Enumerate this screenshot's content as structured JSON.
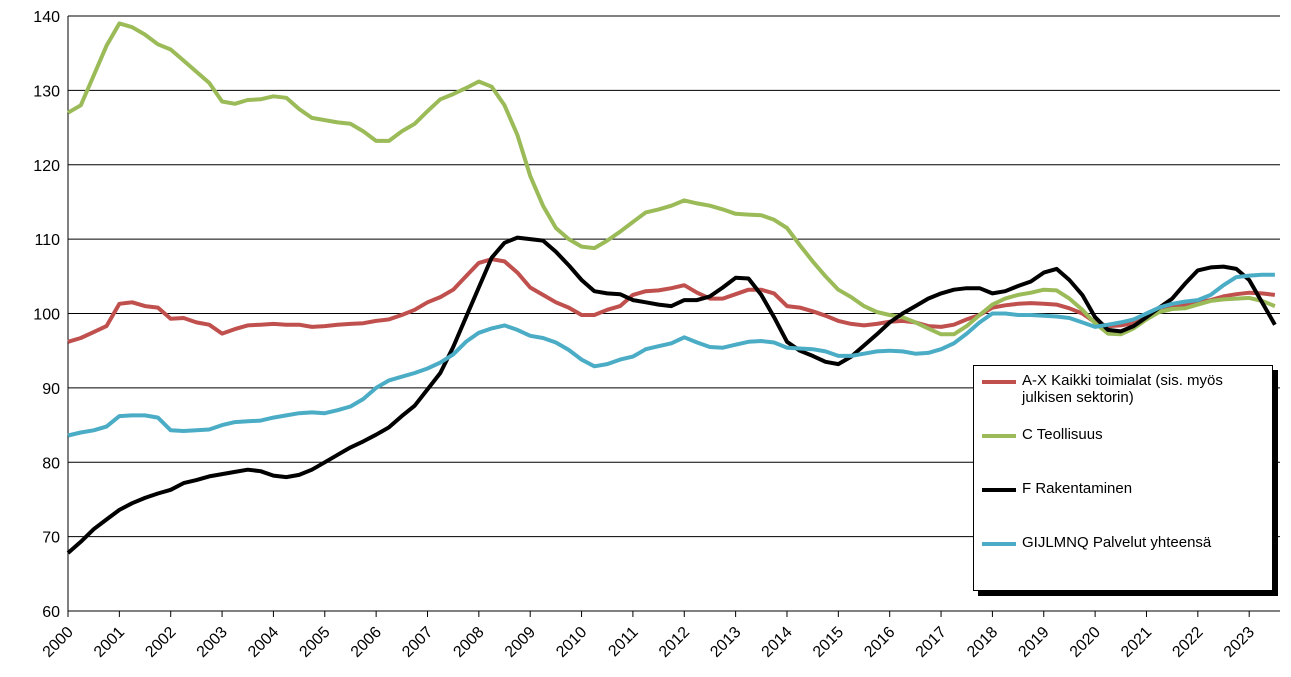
{
  "chart_data": {
    "type": "line",
    "x": [
      2000,
      2000.25,
      2000.5,
      2000.75,
      2001,
      2001.25,
      2001.5,
      2001.75,
      2002,
      2002.25,
      2002.5,
      2002.75,
      2003,
      2003.25,
      2003.5,
      2003.75,
      2004,
      2004.25,
      2004.5,
      2004.75,
      2005,
      2005.25,
      2005.5,
      2005.75,
      2006,
      2006.25,
      2006.5,
      2006.75,
      2007,
      2007.25,
      2007.5,
      2007.75,
      2008,
      2008.25,
      2008.5,
      2008.75,
      2009,
      2009.25,
      2009.5,
      2009.75,
      2010,
      2010.25,
      2010.5,
      2010.75,
      2011,
      2011.25,
      2011.5,
      2011.75,
      2012,
      2012.25,
      2012.5,
      2012.75,
      2013,
      2013.25,
      2013.5,
      2013.75,
      2014,
      2014.25,
      2014.5,
      2014.75,
      2015,
      2015.25,
      2015.5,
      2015.75,
      2016,
      2016.25,
      2016.5,
      2016.75,
      2017,
      2017.25,
      2017.5,
      2017.75,
      2018,
      2018.25,
      2018.5,
      2018.75,
      2019,
      2019.25,
      2019.5,
      2019.75,
      2020,
      2020.25,
      2020.5,
      2020.75,
      2021,
      2021.25,
      2021.5,
      2021.75,
      2022,
      2022.25,
      2022.5,
      2022.75,
      2023,
      2023.25,
      2023.5
    ],
    "series": [
      {
        "name": "A-X Kaikki toimialat (sis. myös julkisen sektorin)",
        "color": "#c0504d",
        "values": [
          96.2,
          96.7,
          97.5,
          98.3,
          101.3,
          101.5,
          101,
          100.8,
          99.3,
          99.4,
          98.8,
          98.5,
          97.3,
          97.9,
          98.4,
          98.5,
          98.6,
          98.5,
          98.5,
          98.2,
          98.3,
          98.5,
          98.6,
          98.7,
          99,
          99.2,
          99.8,
          100.5,
          101.5,
          102.2,
          103.2,
          105,
          106.8,
          107.3,
          107,
          105.5,
          103.5,
          102.5,
          101.5,
          100.8,
          99.8,
          99.8,
          100.5,
          101,
          102.5,
          103,
          103.1,
          103.4,
          103.8,
          102.8,
          102,
          102,
          102.6,
          103.2,
          103.2,
          102.7,
          101,
          100.8,
          100.3,
          99.7,
          99,
          98.6,
          98.4,
          98.6,
          98.9,
          99,
          98.8,
          98.3,
          98.2,
          98.5,
          99.2,
          99.8,
          100.8,
          101.1,
          101.3,
          101.4,
          101.3,
          101.2,
          100.7,
          100,
          98.8,
          98.3,
          98.4,
          98.7,
          99.5,
          100.3,
          100.9,
          101.2,
          101.5,
          101.8,
          102.3,
          102.6,
          102.8,
          102.7,
          102.5
        ]
      },
      {
        "name": "C Teollisuus",
        "color": "#9bbb59",
        "values": [
          127,
          128,
          132,
          136,
          139,
          138.5,
          137.5,
          136.2,
          135.5,
          134,
          132.5,
          131,
          128.5,
          128.2,
          128.7,
          128.8,
          129.2,
          129,
          127.5,
          126.3,
          126,
          125.7,
          125.5,
          124.5,
          123.2,
          123.2,
          124.5,
          125.5,
          127.2,
          128.8,
          129.5,
          130.3,
          131.2,
          130.5,
          128,
          124,
          118.5,
          114.5,
          111.5,
          110,
          109,
          108.8,
          109.8,
          111,
          112.3,
          113.6,
          114,
          114.5,
          115.2,
          114.8,
          114.5,
          114,
          113.4,
          113.3,
          113.2,
          112.6,
          111.5,
          109.2,
          107,
          105,
          103.2,
          102.2,
          101,
          100.2,
          99.8,
          99.5,
          98.8,
          98,
          97.2,
          97.2,
          98.3,
          99.8,
          101.2,
          102,
          102.5,
          102.8,
          103.2,
          103.1,
          102,
          100.5,
          98.7,
          97.3,
          97.2,
          98,
          99.2,
          100.2,
          100.6,
          100.7,
          101.2,
          101.7,
          101.9,
          102,
          102.1,
          101.7,
          101
        ]
      },
      {
        "name": "F Rakentaminen",
        "color": "#000000",
        "values": [
          67.8,
          69.3,
          71,
          72.3,
          73.6,
          74.5,
          75.2,
          75.8,
          76.3,
          77.2,
          77.6,
          78.1,
          78.4,
          78.7,
          79,
          78.8,
          78.2,
          78,
          78.3,
          79,
          80,
          81,
          82,
          82.8,
          83.7,
          84.7,
          86.2,
          87.6,
          89.8,
          92,
          95.5,
          99.5,
          103.5,
          107.5,
          109.5,
          110.2,
          110,
          109.8,
          108.3,
          106.5,
          104.5,
          103,
          102.7,
          102.6,
          101.8,
          101.5,
          101.2,
          101,
          101.8,
          101.8,
          102.3,
          103.5,
          104.8,
          104.7,
          102.5,
          99.5,
          96.2,
          95,
          94.3,
          93.5,
          93.2,
          94.2,
          95.7,
          97.2,
          98.8,
          100,
          101,
          102,
          102.7,
          103.2,
          103.4,
          103.4,
          102.7,
          103,
          103.7,
          104.3,
          105.5,
          106,
          104.5,
          102.5,
          99.5,
          97.8,
          97.6,
          98.3,
          99.5,
          100.8,
          102,
          104,
          105.8,
          106.2,
          106.3,
          106,
          104.5,
          101.5,
          98.5
        ]
      },
      {
        "name": "GIJLMNQ Palvelut yhteensä",
        "color": "#4bacc6",
        "values": [
          83.6,
          84,
          84.3,
          84.8,
          86.2,
          86.3,
          86.3,
          86,
          84.3,
          84.2,
          84.3,
          84.4,
          85,
          85.4,
          85.5,
          85.6,
          86,
          86.3,
          86.6,
          86.7,
          86.6,
          87,
          87.5,
          88.5,
          90,
          91,
          91.5,
          92,
          92.6,
          93.4,
          94.5,
          96.2,
          97.4,
          98,
          98.4,
          97.8,
          97,
          96.7,
          96.1,
          95.1,
          93.8,
          92.9,
          93.2,
          93.8,
          94.2,
          95.2,
          95.6,
          96,
          96.8,
          96.1,
          95.5,
          95.4,
          95.8,
          96.2,
          96.3,
          96.1,
          95.4,
          95.3,
          95.2,
          94.9,
          94.3,
          94.3,
          94.6,
          94.9,
          95,
          94.9,
          94.6,
          94.7,
          95.2,
          96,
          97.3,
          98.8,
          100,
          100,
          99.8,
          99.8,
          99.7,
          99.6,
          99.4,
          98.8,
          98.2,
          98.5,
          98.8,
          99.2,
          100,
          100.8,
          101.3,
          101.6,
          101.8,
          102.5,
          103.8,
          104.9,
          105.1,
          105.2,
          105.2
        ]
      }
    ],
    "xlim": [
      2000,
      2023.6
    ],
    "xticks": [
      2000,
      2001,
      2002,
      2003,
      2004,
      2005,
      2006,
      2007,
      2008,
      2009,
      2010,
      2011,
      2012,
      2013,
      2014,
      2015,
      2016,
      2017,
      2018,
      2019,
      2020,
      2021,
      2022,
      2023
    ],
    "ylim": [
      60,
      140
    ],
    "yticks": [
      60,
      70,
      80,
      90,
      100,
      110,
      120,
      130,
      140
    ],
    "grid": true,
    "legend": "lower right"
  }
}
